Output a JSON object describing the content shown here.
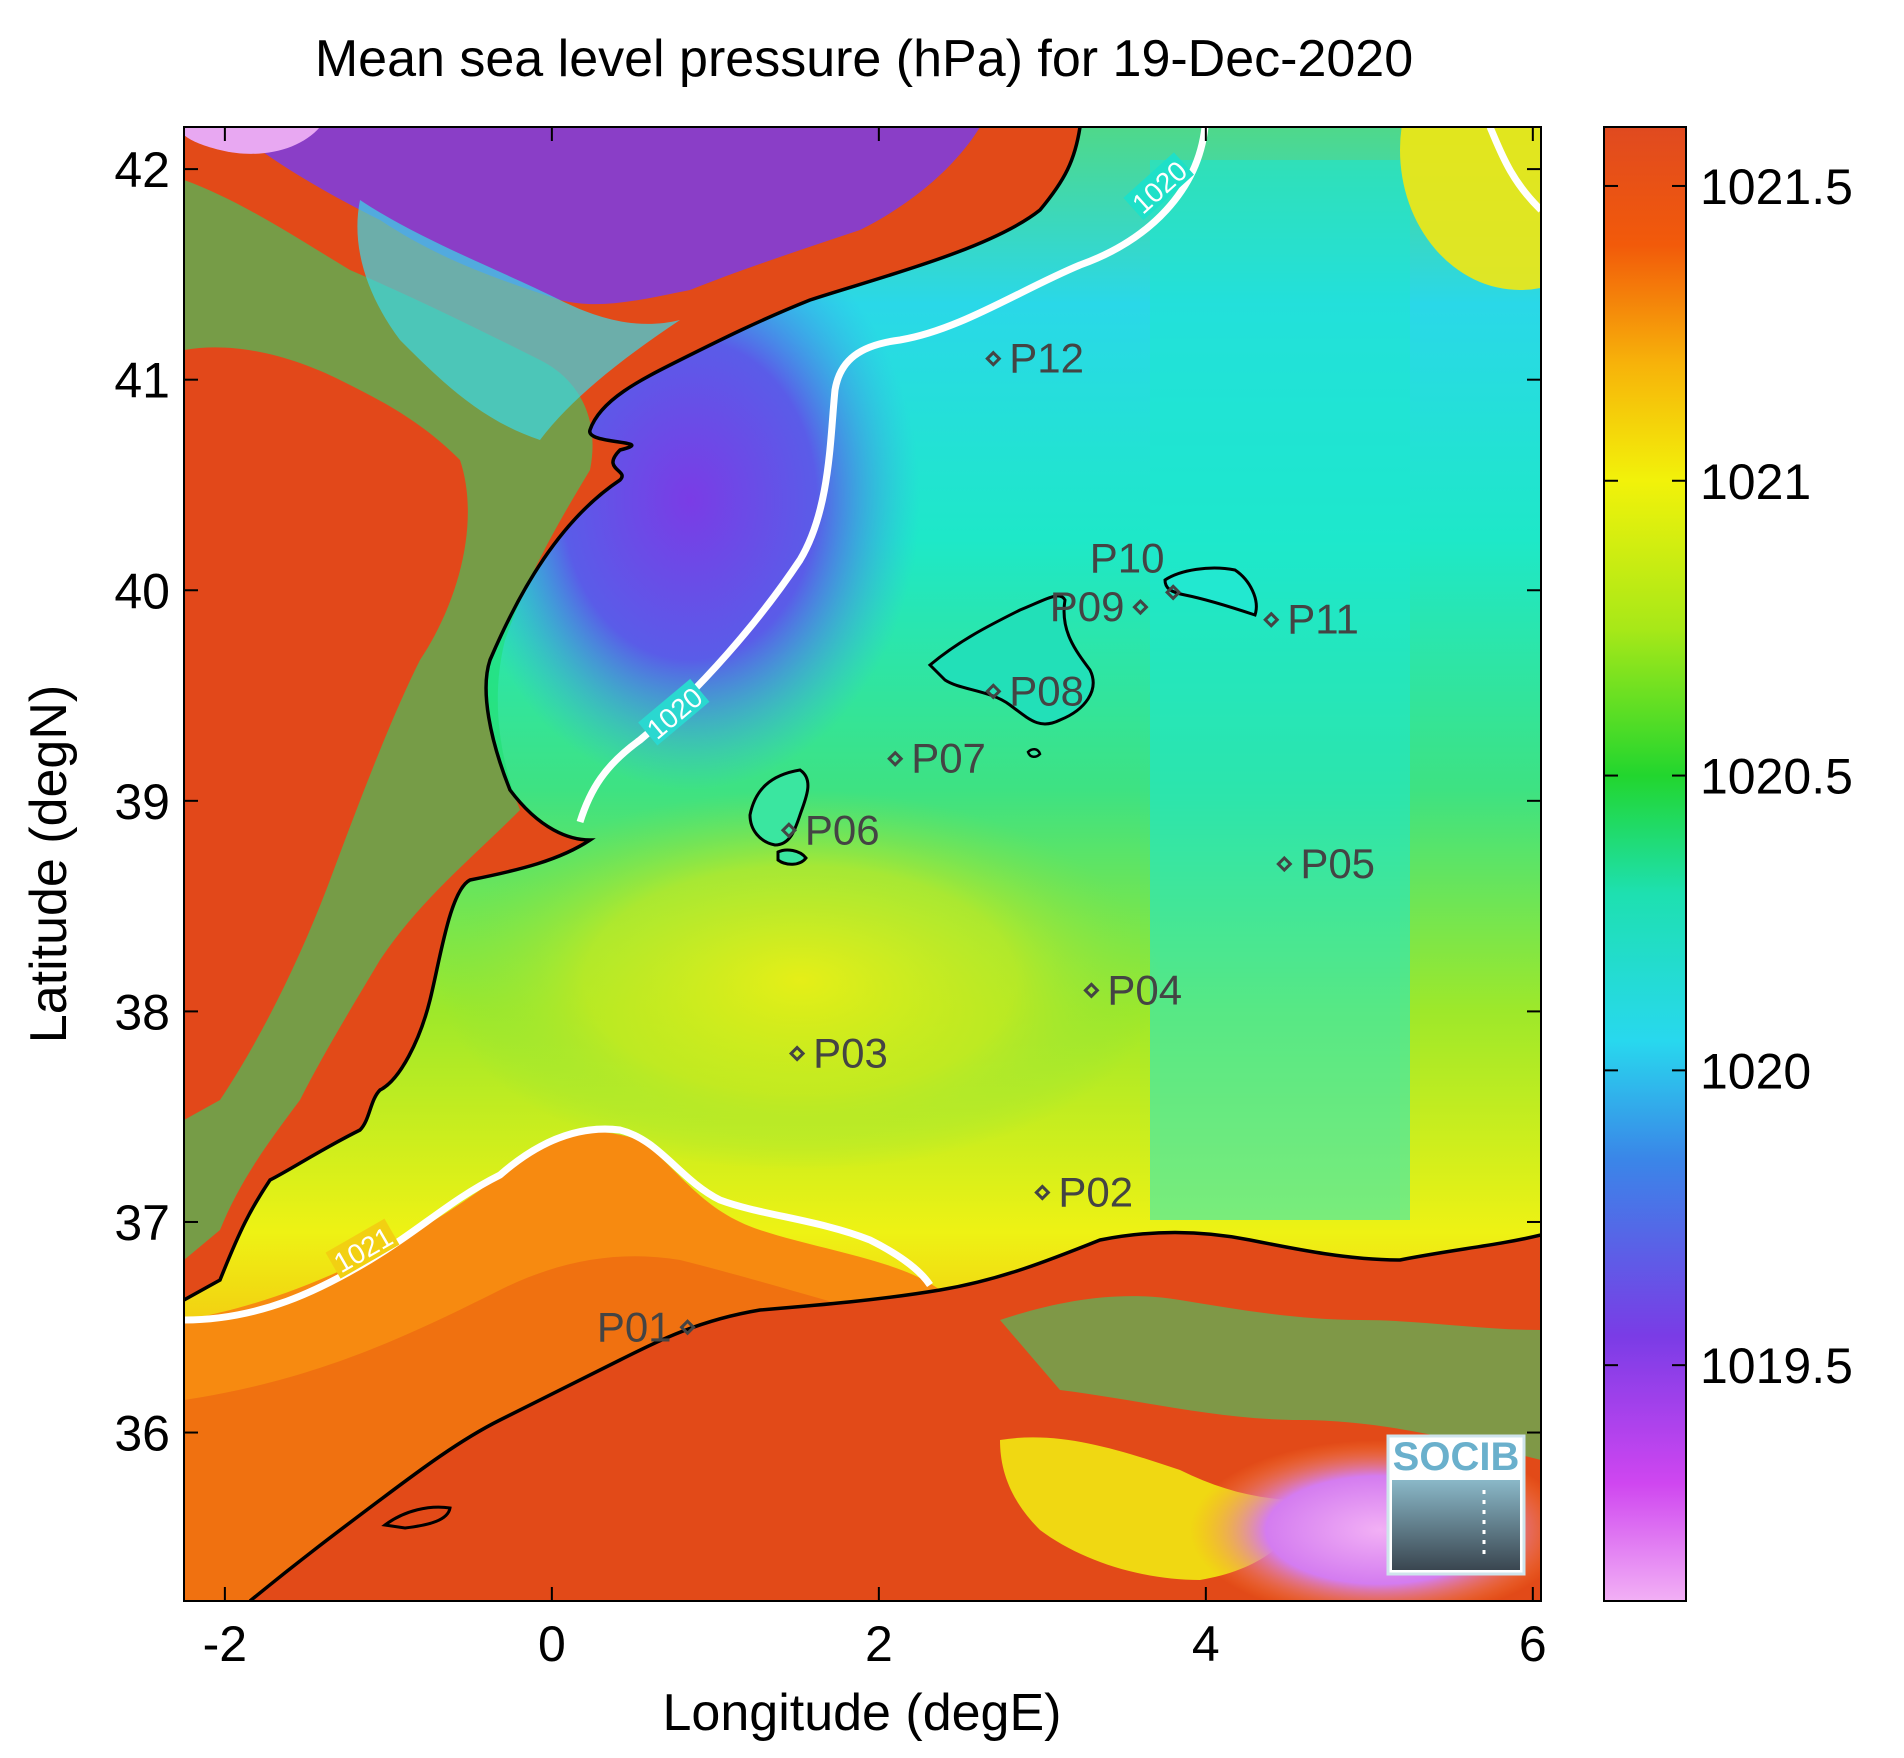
{
  "title": "Mean sea level pressure (hPa) for 19-Dec-2020",
  "map": {
    "xlabel": "Longitude (degE)",
    "ylabel": "Latitude (degN)",
    "xlim": [
      -2.25,
      6.05
    ],
    "ylim": [
      35.2,
      42.2
    ],
    "xticks": [
      -2,
      0,
      2,
      4,
      6
    ],
    "yticks": [
      36,
      37,
      38,
      39,
      40,
      41,
      42
    ]
  },
  "colorbar": {
    "min": 1019.1,
    "max": 1021.6,
    "ticks": [
      1019.5,
      1020,
      1020.5,
      1021,
      1021.5
    ],
    "tick_labels": [
      "1019.5",
      "1020",
      "1020.5",
      "1021",
      "1021.5"
    ],
    "colors": [
      "#f2b0f5",
      "#cf46f0",
      "#7a3ce6",
      "#3a86e8",
      "#28d8ee",
      "#1ee0b0",
      "#22d62e",
      "#a8e818",
      "#f2f20a",
      "#f7b20a",
      "#f25a0a",
      "#e04a20"
    ]
  },
  "contours": [
    {
      "value": "1020",
      "label": "1020",
      "color": "#ffffff"
    },
    {
      "value": "1021",
      "label": "1021",
      "color": "#ffffff"
    }
  ],
  "stations": [
    {
      "label": "P01",
      "lon": 0.83,
      "lat": 36.5,
      "anchor": "end"
    },
    {
      "label": "P02",
      "lon": 3.0,
      "lat": 37.14,
      "anchor": "start"
    },
    {
      "label": "P03",
      "lon": 1.5,
      "lat": 37.8,
      "anchor": "start"
    },
    {
      "label": "P04",
      "lon": 3.3,
      "lat": 38.1,
      "anchor": "start"
    },
    {
      "label": "P05",
      "lon": 4.48,
      "lat": 38.7,
      "anchor": "start"
    },
    {
      "label": "P06",
      "lon": 1.45,
      "lat": 38.86,
      "anchor": "start"
    },
    {
      "label": "P07",
      "lon": 2.1,
      "lat": 39.2,
      "anchor": "start"
    },
    {
      "label": "P08",
      "lon": 2.7,
      "lat": 39.52,
      "anchor": "start"
    },
    {
      "label": "P09",
      "lon": 3.6,
      "lat": 39.92,
      "anchor": "end"
    },
    {
      "label": "P10",
      "lon": 3.8,
      "lat": 39.99,
      "anchor": "end-above"
    },
    {
      "label": "P11",
      "lon": 4.4,
      "lat": 39.86,
      "anchor": "start"
    },
    {
      "label": "P12",
      "lon": 2.7,
      "lat": 41.1,
      "anchor": "start"
    }
  ],
  "logo": {
    "text": "SOCIB"
  }
}
